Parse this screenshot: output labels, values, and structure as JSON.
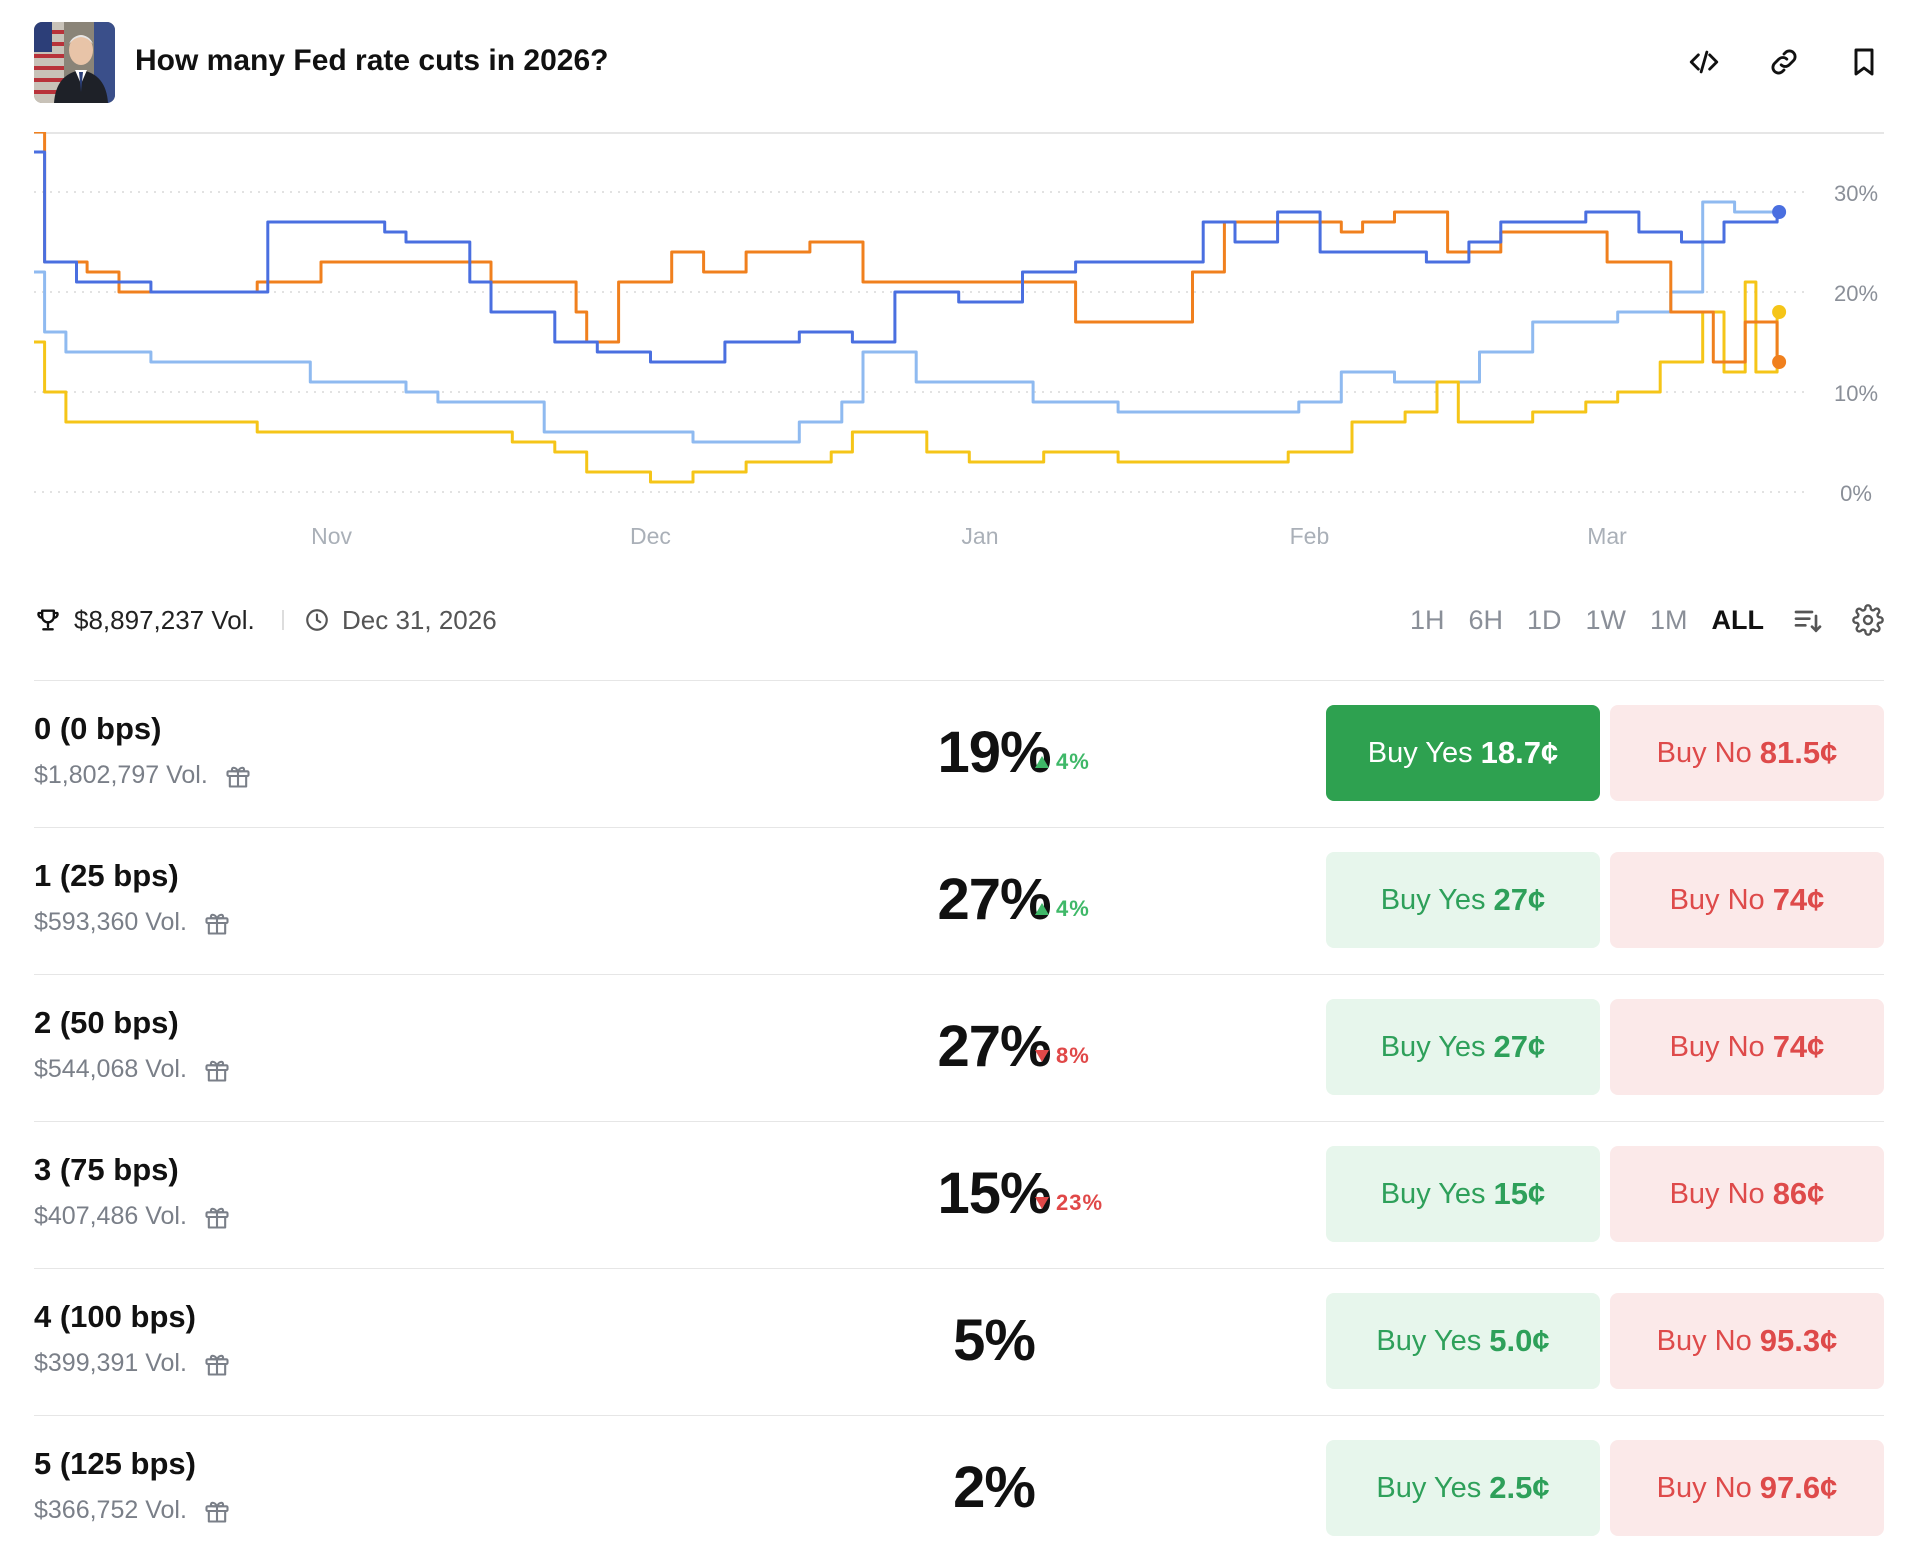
{
  "header": {
    "title": "How many Fed rate cuts in 2026?",
    "icons": [
      "code-icon",
      "link-icon",
      "bookmark-icon"
    ]
  },
  "chart_data": {
    "type": "line",
    "x_ticks": [
      "Nov",
      "Dec",
      "Jan",
      "Feb",
      "Mar"
    ],
    "y_ticks": [
      "30%",
      "20%",
      "10%",
      "0%"
    ],
    "ylim": [
      0,
      35
    ],
    "grid": true,
    "x_domain": [
      "2025-10-04",
      "2026-03-20"
    ],
    "series": [
      {
        "color": "#4a6fe0",
        "points": [
          [
            "2025-10-04",
            34
          ],
          [
            "2025-10-05",
            23
          ],
          [
            "2025-10-08",
            21
          ],
          [
            "2025-10-15",
            20
          ],
          [
            "2025-10-25",
            20
          ],
          [
            "2025-10-26",
            27
          ],
          [
            "2025-11-06",
            26
          ],
          [
            "2025-11-08",
            25
          ],
          [
            "2025-11-14",
            21
          ],
          [
            "2025-11-16",
            18
          ],
          [
            "2025-11-20",
            18
          ],
          [
            "2025-11-22",
            15
          ],
          [
            "2025-11-26",
            14
          ],
          [
            "2025-12-01",
            13
          ],
          [
            "2025-12-08",
            15
          ],
          [
            "2025-12-15",
            16
          ],
          [
            "2025-12-20",
            15
          ],
          [
            "2025-12-24",
            20
          ],
          [
            "2025-12-30",
            19
          ],
          [
            "2026-01-05",
            22
          ],
          [
            "2026-01-10",
            23
          ],
          [
            "2026-01-20",
            23
          ],
          [
            "2026-01-22",
            27
          ],
          [
            "2026-01-25",
            25
          ],
          [
            "2026-01-29",
            28
          ],
          [
            "2026-02-02",
            24
          ],
          [
            "2026-02-12",
            23
          ],
          [
            "2026-02-16",
            25
          ],
          [
            "2026-02-19",
            27
          ],
          [
            "2026-02-27",
            28
          ],
          [
            "2026-03-04",
            26
          ],
          [
            "2026-03-08",
            25
          ],
          [
            "2026-03-12",
            27
          ],
          [
            "2026-03-17",
            28
          ]
        ]
      },
      {
        "color": "#f0801e",
        "points": [
          [
            "2025-10-04",
            36
          ],
          [
            "2025-10-05",
            23
          ],
          [
            "2025-10-09",
            22
          ],
          [
            "2025-10-12",
            20
          ],
          [
            "2025-10-25",
            21
          ],
          [
            "2025-10-31",
            23
          ],
          [
            "2025-11-16",
            21
          ],
          [
            "2025-11-18",
            21
          ],
          [
            "2025-11-24",
            18
          ],
          [
            "2025-11-25",
            15
          ],
          [
            "2025-11-28",
            21
          ],
          [
            "2025-12-03",
            24
          ],
          [
            "2025-12-06",
            22
          ],
          [
            "2025-12-10",
            24
          ],
          [
            "2025-12-16",
            25
          ],
          [
            "2025-12-21",
            21
          ],
          [
            "2026-01-04",
            21
          ],
          [
            "2026-01-08",
            21
          ],
          [
            "2026-01-10",
            17
          ],
          [
            "2026-01-19",
            17
          ],
          [
            "2026-01-21",
            22
          ],
          [
            "2026-01-24",
            27
          ],
          [
            "2026-01-28",
            27
          ],
          [
            "2026-02-04",
            26
          ],
          [
            "2026-02-06",
            27
          ],
          [
            "2026-02-09",
            28
          ],
          [
            "2026-02-14",
            24
          ],
          [
            "2026-02-19",
            26
          ],
          [
            "2026-02-24",
            26
          ],
          [
            "2026-03-01",
            23
          ],
          [
            "2026-03-07",
            18
          ],
          [
            "2026-03-11",
            13
          ],
          [
            "2026-03-14",
            17
          ],
          [
            "2026-03-17",
            13
          ]
        ]
      },
      {
        "color": "#8fbaf0",
        "points": [
          [
            "2025-10-04",
            22
          ],
          [
            "2025-10-05",
            16
          ],
          [
            "2025-10-07",
            14
          ],
          [
            "2025-10-15",
            13
          ],
          [
            "2025-10-26",
            13
          ],
          [
            "2025-10-30",
            11
          ],
          [
            "2025-11-08",
            10
          ],
          [
            "2025-11-11",
            9
          ],
          [
            "2025-11-16",
            9
          ],
          [
            "2025-11-21",
            6
          ],
          [
            "2025-11-26",
            6
          ],
          [
            "2025-12-05",
            5
          ],
          [
            "2025-12-15",
            7
          ],
          [
            "2025-12-19",
            9
          ],
          [
            "2025-12-21",
            14
          ],
          [
            "2025-12-26",
            11
          ],
          [
            "2026-01-06",
            9
          ],
          [
            "2026-01-12",
            9
          ],
          [
            "2026-01-14",
            8
          ],
          [
            "2026-01-22",
            8
          ],
          [
            "2026-01-31",
            9
          ],
          [
            "2026-02-04",
            12
          ],
          [
            "2026-02-09",
            11
          ],
          [
            "2026-02-17",
            14
          ],
          [
            "2026-02-22",
            17
          ],
          [
            "2026-02-25",
            17
          ],
          [
            "2026-03-02",
            18
          ],
          [
            "2026-03-07",
            20
          ],
          [
            "2026-03-10",
            29
          ],
          [
            "2026-03-13",
            28
          ],
          [
            "2026-03-17",
            27
          ]
        ]
      },
      {
        "color": "#f5c518",
        "points": [
          [
            "2025-10-04",
            15
          ],
          [
            "2025-10-05",
            10
          ],
          [
            "2025-10-07",
            7
          ],
          [
            "2025-10-15",
            7
          ],
          [
            "2025-10-25",
            6
          ],
          [
            "2025-11-07",
            6
          ],
          [
            "2025-11-16",
            6
          ],
          [
            "2025-11-18",
            5
          ],
          [
            "2025-11-22",
            4
          ],
          [
            "2025-11-25",
            2
          ],
          [
            "2025-12-01",
            1
          ],
          [
            "2025-12-05",
            2
          ],
          [
            "2025-12-10",
            3
          ],
          [
            "2025-12-18",
            4
          ],
          [
            "2025-12-20",
            6
          ],
          [
            "2025-12-27",
            4
          ],
          [
            "2025-12-31",
            3
          ],
          [
            "2026-01-07",
            4
          ],
          [
            "2026-01-14",
            3
          ],
          [
            "2026-01-24",
            3
          ],
          [
            "2026-01-30",
            4
          ],
          [
            "2026-02-05",
            7
          ],
          [
            "2026-02-10",
            8
          ],
          [
            "2026-02-13",
            11
          ],
          [
            "2026-02-15",
            7
          ],
          [
            "2026-02-22",
            8
          ],
          [
            "2026-02-27",
            9
          ],
          [
            "2026-03-02",
            10
          ],
          [
            "2026-03-06",
            13
          ],
          [
            "2026-03-10",
            18
          ],
          [
            "2026-03-12",
            12
          ],
          [
            "2026-03-14",
            21
          ],
          [
            "2026-03-15",
            12
          ],
          [
            "2026-03-17",
            18
          ]
        ]
      }
    ]
  },
  "meta": {
    "volume": "$8,897,237 Vol.",
    "end_date": "Dec 31, 2026"
  },
  "ranges": [
    "1H",
    "6H",
    "1D",
    "1W",
    "1M",
    "ALL"
  ],
  "active_range": "ALL",
  "outcomes": [
    {
      "label": "0 (0 bps)",
      "volume": "$1,802,797 Vol.",
      "percent": "19%",
      "change": "4%",
      "direction": "up",
      "yes_label": "Buy Yes",
      "yes_price": "18.7¢",
      "no_label": "Buy No",
      "no_price": "81.5¢",
      "yes_selected": true
    },
    {
      "label": "1 (25 bps)",
      "volume": "$593,360 Vol.",
      "percent": "27%",
      "change": "4%",
      "direction": "up",
      "yes_label": "Buy Yes",
      "yes_price": "27¢",
      "no_label": "Buy No",
      "no_price": "74¢",
      "yes_selected": false
    },
    {
      "label": "2 (50 bps)",
      "volume": "$544,068 Vol.",
      "percent": "27%",
      "change": "8%",
      "direction": "down",
      "yes_label": "Buy Yes",
      "yes_price": "27¢",
      "no_label": "Buy No",
      "no_price": "74¢",
      "yes_selected": false
    },
    {
      "label": "3 (75 bps)",
      "volume": "$407,486 Vol.",
      "percent": "15%",
      "change": "23%",
      "direction": "down",
      "yes_label": "Buy Yes",
      "yes_price": "15¢",
      "no_label": "Buy No",
      "no_price": "86¢",
      "yes_selected": false
    },
    {
      "label": "4 (100 bps)",
      "volume": "$399,391 Vol.",
      "percent": "5%",
      "change": "",
      "direction": "none",
      "yes_label": "Buy Yes",
      "yes_price": "5.0¢",
      "no_label": "Buy No",
      "no_price": "95.3¢",
      "yes_selected": false
    },
    {
      "label": "5 (125 bps)",
      "volume": "$366,752 Vol.",
      "percent": "2%",
      "change": "",
      "direction": "none",
      "yes_label": "Buy Yes",
      "yes_price": "2.5¢",
      "no_label": "Buy No",
      "no_price": "97.6¢",
      "yes_selected": false
    }
  ]
}
